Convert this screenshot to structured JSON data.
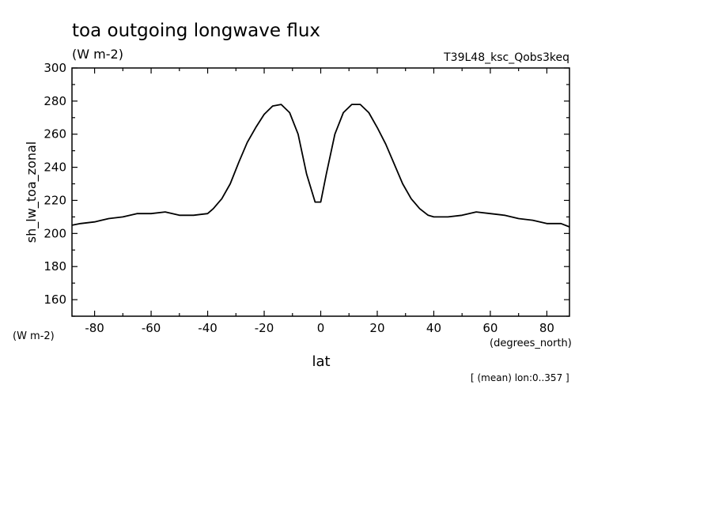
{
  "chart_data": {
    "type": "line",
    "title": "toa outgoing longwave flux",
    "units": "(W m-2)",
    "experiment": "T39L48_ksc_Qobs3keq",
    "ylabel": "sh_lw_toa_zonal",
    "yunits": "(W m-2)",
    "xlabel": "lat",
    "xunits": "(degrees_north)",
    "footnote": "[ (mean) lon:0..357 ]",
    "xlim": [
      -88,
      88
    ],
    "ylim": [
      150,
      300
    ],
    "xticks": [
      -80,
      -60,
      -40,
      -20,
      0,
      20,
      40,
      60,
      80
    ],
    "xtick_labels": [
      "-80",
      "-60",
      "-40",
      "-20",
      "0",
      "20",
      "40",
      "60",
      "80"
    ],
    "yticks": [
      160,
      180,
      200,
      220,
      240,
      260,
      280,
      300
    ],
    "ytick_labels": [
      "160",
      "180",
      "200",
      "220",
      "240",
      "260",
      "280",
      "300"
    ],
    "grid": false,
    "series": [
      {
        "x": [
          -88,
          -85,
          -80,
          -75,
          -70,
          -65,
          -60,
          -55,
          -50,
          -45,
          -40,
          -38,
          -35,
          -32,
          -29,
          -26,
          -23,
          -20,
          -17,
          -14,
          -11,
          -8,
          -5,
          -2,
          0,
          2,
          5,
          8,
          11,
          14,
          17,
          20,
          23,
          26,
          29,
          32,
          35,
          38,
          40,
          45,
          50,
          55,
          60,
          65,
          70,
          75,
          80,
          85,
          88
        ],
        "y": [
          205,
          206,
          207,
          209,
          210,
          212,
          212,
          213,
          211,
          211,
          212,
          215,
          221,
          230,
          243,
          255,
          264,
          272,
          277,
          278,
          273,
          260,
          236,
          219,
          219,
          236,
          260,
          273,
          278,
          278,
          273,
          264,
          254,
          242,
          230,
          221,
          215,
          211,
          210,
          210,
          211,
          213,
          212,
          211,
          209,
          208,
          206,
          206,
          204
        ]
      }
    ]
  }
}
